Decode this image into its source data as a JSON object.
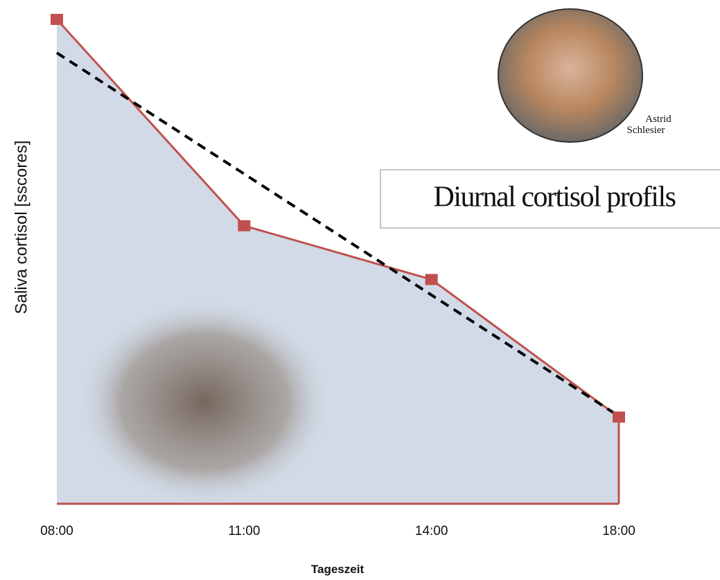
{
  "chart_data": {
    "type": "area",
    "title": "Diurnal cortisol profils",
    "photo_caption": [
      "Astrid",
      "Schlesier"
    ],
    "y_label": "Saliva cortisol [sscores]",
    "x_label": "Tageszeit",
    "categories": [
      "08:00",
      "11:00",
      "14:00",
      "18:00"
    ],
    "values": [
      100,
      57.4,
      46.3,
      17.9
    ],
    "trend_values": [
      93.1,
      18.1
    ],
    "color": "#c0504d",
    "fill": "#d1dae6",
    "trend_color": "#000000",
    "ylim": [
      0,
      100
    ]
  }
}
